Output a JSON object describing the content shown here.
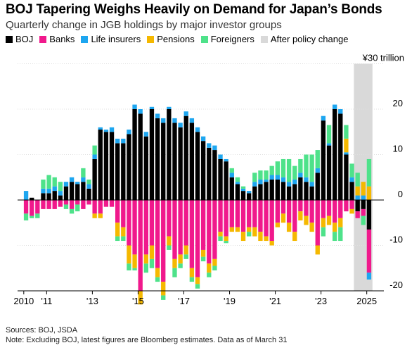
{
  "title": "BOJ Tapering Weighs Heavily on Demand for Japan’s Bonds",
  "subtitle": "Quarterly change in JGB holdings by major investor groups",
  "legend": [
    {
      "name": "BOJ",
      "color": "#000000"
    },
    {
      "name": "Banks",
      "color": "#f0198c"
    },
    {
      "name": "Life insurers",
      "color": "#1da6f0"
    },
    {
      "name": "Pensions",
      "color": "#f5b800"
    },
    {
      "name": "Foreigners",
      "color": "#4ee28a"
    },
    {
      "name": "After policy change",
      "color": "#d9d9d9"
    }
  ],
  "footer": {
    "sources": "Sources: BOJ, JSDA",
    "note": "Note: Excluding BOJ, latest figures are Bloomberg estimates. Data as of March 31"
  },
  "chart_data": {
    "type": "bar",
    "stacked": true,
    "unit": "¥30 trillion",
    "ylim": [
      -20,
      30
    ],
    "yticks": [
      -20,
      -10,
      0,
      10,
      20
    ],
    "ytick_labels": [
      "-20",
      "-10",
      "0",
      "10",
      "20"
    ],
    "top_label": "¥30 trillion",
    "xtick_labels": [
      "2010",
      "'11",
      "'13",
      "'15",
      "'17",
      "'19",
      "'21",
      "'23",
      "2025"
    ],
    "xtick_years": [
      2010,
      2011,
      2013,
      2015,
      2017,
      2019,
      2021,
      2023,
      2025
    ],
    "shaded_region": {
      "label": "After policy change",
      "from": "2024Q3",
      "to": "2025Q1"
    },
    "categories": [
      "2010Q1",
      "2010Q2",
      "2010Q3",
      "2010Q4",
      "2011Q1",
      "2011Q2",
      "2011Q3",
      "2011Q4",
      "2012Q1",
      "2012Q2",
      "2012Q3",
      "2012Q4",
      "2013Q1",
      "2013Q2",
      "2013Q3",
      "2013Q4",
      "2014Q1",
      "2014Q2",
      "2014Q3",
      "2014Q4",
      "2015Q1",
      "2015Q2",
      "2015Q3",
      "2015Q4",
      "2016Q1",
      "2016Q2",
      "2016Q3",
      "2016Q4",
      "2017Q1",
      "2017Q2",
      "2017Q3",
      "2017Q4",
      "2018Q1",
      "2018Q2",
      "2018Q3",
      "2018Q4",
      "2019Q1",
      "2019Q2",
      "2019Q3",
      "2019Q4",
      "2020Q1",
      "2020Q2",
      "2020Q3",
      "2020Q4",
      "2021Q1",
      "2021Q2",
      "2021Q3",
      "2021Q4",
      "2022Q1",
      "2022Q2",
      "2022Q3",
      "2022Q4",
      "2023Q1",
      "2023Q2",
      "2023Q3",
      "2023Q4",
      "2024Q1",
      "2024Q2",
      "2024Q3",
      "2024Q4",
      "2025Q1"
    ],
    "series": [
      {
        "name": "BOJ",
        "values": [
          0,
          0.5,
          0,
          1.5,
          1.5,
          2,
          1,
          3,
          4,
          3.5,
          4,
          2.5,
          9,
          15.5,
          15,
          15,
          12.5,
          12.5,
          14.5,
          20,
          19,
          14,
          20,
          18,
          17,
          20,
          17,
          16,
          18.5,
          17,
          15,
          13,
          11.5,
          11,
          9,
          8.5,
          5,
          3.5,
          2,
          1.5,
          3,
          3.5,
          4,
          4.5,
          4.5,
          4,
          3,
          3.5,
          5,
          4,
          3,
          6,
          17.5,
          12,
          20,
          19,
          10,
          4,
          -2.5,
          -2,
          -6.5
        ]
      },
      {
        "name": "Banks",
        "values": [
          -3,
          -3.5,
          -3,
          -2,
          -2,
          -2,
          -1.5,
          -1,
          -2,
          -1,
          -2,
          -1,
          -3,
          -3,
          -1.5,
          -1.5,
          -5,
          -6,
          -10,
          -12,
          -20,
          -12,
          -10,
          -15,
          -18,
          -8,
          -13,
          -12,
          -10,
          -15,
          -17,
          -11,
          -14,
          -13,
          -7,
          -8,
          -6,
          -6,
          -7,
          -6,
          -6,
          -7,
          -8,
          -9,
          -5,
          -3,
          -5,
          -7,
          -2.5,
          -3.5,
          -5,
          -10,
          -4,
          -3.5,
          -5,
          -4,
          -2.5,
          -2,
          -1.5,
          -1.5,
          -9.5
        ]
      },
      {
        "name": "Life insurers",
        "values": [
          2,
          0,
          0,
          1,
          1,
          1,
          1,
          1,
          1,
          0.5,
          1,
          1,
          1,
          0.5,
          0.5,
          1,
          1,
          1,
          1,
          1,
          1,
          1,
          0.5,
          1,
          1,
          0.5,
          1,
          1,
          1,
          1,
          1,
          1,
          1,
          1,
          1,
          0.5,
          1,
          0.5,
          0.5,
          0.5,
          1,
          1,
          0.5,
          1,
          1,
          1,
          1,
          1,
          1,
          1,
          1,
          1,
          1,
          0.5,
          1,
          1,
          0.5,
          1,
          1,
          1,
          -1.5
        ]
      },
      {
        "name": "Pensions",
        "values": [
          0,
          0,
          0,
          0,
          0,
          0,
          0,
          0,
          0,
          0,
          0,
          0,
          -1,
          -1,
          0,
          0,
          -3,
          -2,
          -4,
          -3,
          -3,
          -2,
          -3,
          -2,
          -3,
          -2,
          -2,
          -2,
          -2,
          -2,
          -1.5,
          -1.5,
          -2,
          -1.5,
          -1,
          -1,
          -1,
          -1,
          -2,
          -1,
          -2,
          -2,
          -1,
          -1,
          -1,
          -2,
          -2,
          -2,
          -2,
          -2,
          -2,
          -2,
          -2,
          -2,
          -2,
          -2,
          3,
          -1,
          2,
          3,
          3
        ]
      },
      {
        "name": "Foreigners",
        "values": [
          -1.5,
          -0.5,
          -1,
          2,
          3,
          2,
          2,
          -1,
          -1,
          -1.5,
          2,
          1,
          2,
          0,
          0,
          0,
          -1,
          -1,
          -1.5,
          -0.5,
          0,
          -2,
          -2,
          -1,
          -1,
          -1,
          -2,
          -1,
          -1,
          -1,
          -1,
          -1,
          -1,
          -1,
          -1,
          -0.5,
          1,
          1,
          0.5,
          -1,
          2,
          2,
          2,
          2,
          3,
          4,
          5,
          3,
          3,
          5,
          6,
          4,
          -2,
          4,
          -2,
          -3,
          3,
          3,
          3,
          -2,
          6
        ]
      }
    ]
  }
}
